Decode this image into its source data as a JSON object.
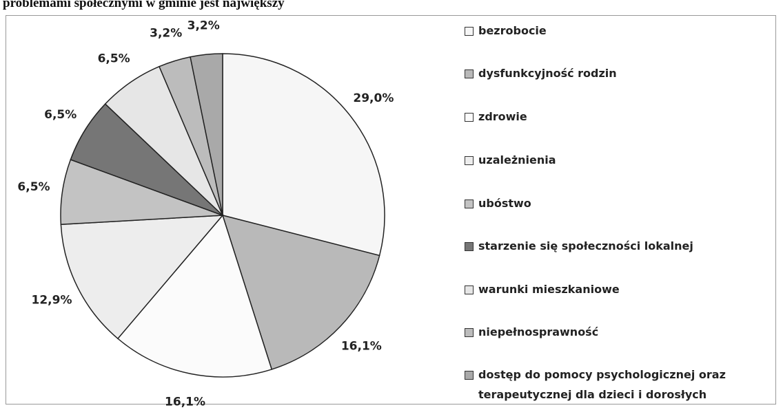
{
  "chart_data": {
    "type": "pie",
    "title": "problemami społecznymi w gminie jest największy",
    "categories": [
      "bezrobocie",
      "dysfunkcyjność rodzin",
      "zdrowie",
      "uzależnienia",
      "ubóstwo",
      "starzenie się społeczności lokalnej",
      "warunki mieszkaniowe",
      "niepełnosprawność",
      "dostęp do pomocy psychologicznej oraz terapeutycznej dla dzieci i dorosłych"
    ],
    "values": [
      29.0,
      16.1,
      16.1,
      12.9,
      6.5,
      6.5,
      6.5,
      3.2,
      3.2
    ],
    "value_labels": [
      "29,0%",
      "16,1%",
      "16,1%",
      "12,9%",
      "6,5%",
      "6,5%",
      "6,5%",
      "3,2%",
      "3,2%"
    ],
    "colors": [
      "#f6f6f6",
      "#b9b9b9",
      "#fbfbfb",
      "#ededed",
      "#c3c3c3",
      "#767676",
      "#e6e6e6",
      "#bcbcbc",
      "#a9a9a9"
    ],
    "legend": "right"
  }
}
